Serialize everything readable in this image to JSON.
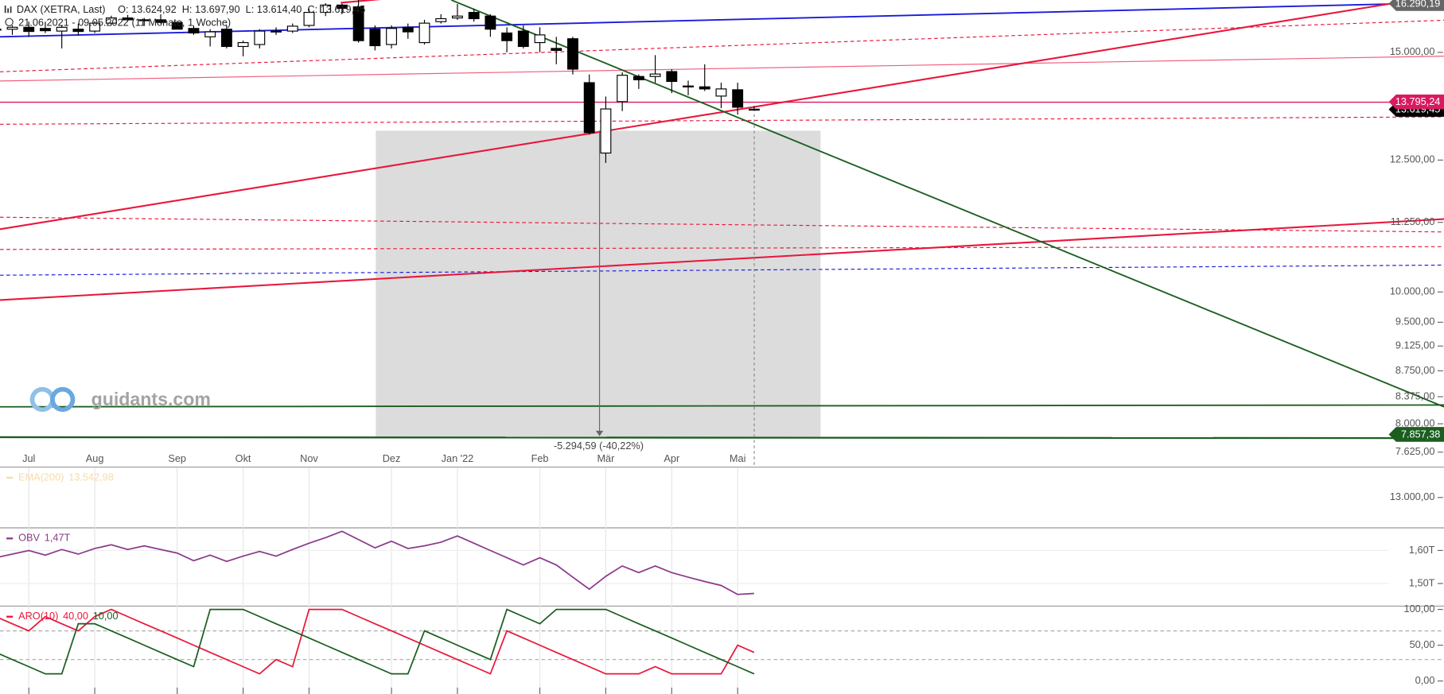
{
  "header": {
    "instrument": "DAX (XETRA, Last)",
    "ohlc": "O: 13.624,92  H: 13.697,90  L: 13.614,40  C: 13.619,45",
    "range": "21.06.2021 - 09.05.2022",
    "duration": "(11 Monate, 1 Woche)"
  },
  "watermark": "guidants.com",
  "chart_data": [
    {
      "type": "candlestick",
      "log_scale": true,
      "categories": [
        null,
        null,
        "Jul",
        null,
        null,
        null,
        "Aug",
        null,
        null,
        null,
        null,
        "Sep",
        null,
        null,
        null,
        "Okt",
        null,
        null,
        null,
        "Nov",
        null,
        null,
        null,
        null,
        "Dez",
        null,
        null,
        null,
        "Jan '22",
        null,
        null,
        null,
        null,
        "Feb",
        null,
        null,
        null,
        "Mär",
        null,
        null,
        null,
        "Apr",
        null,
        null,
        null,
        "Mai",
        null
      ],
      "open": [
        15600,
        15600,
        15650,
        15620,
        15550,
        15600,
        15550,
        15760,
        15900,
        15850,
        15850,
        15780,
        15620,
        15400,
        15600,
        15150,
        15200,
        15550,
        15550,
        15700,
        16050,
        16250,
        16200,
        15600,
        15200,
        15650,
        15250,
        15800,
        15900,
        16050,
        15950,
        15500,
        15550,
        15250,
        15100,
        15350,
        14250,
        12650,
        13800,
        14400,
        14400,
        14520,
        14150,
        14150,
        13930,
        14080,
        13624.92
      ],
      "high": [
        15700,
        15700,
        15800,
        15800,
        15700,
        15750,
        15810,
        15960,
        15980,
        15900,
        16000,
        15800,
        15700,
        15600,
        15700,
        15300,
        15600,
        15650,
        15750,
        16150,
        16300,
        16290,
        16400,
        15700,
        15700,
        15750,
        15850,
        16000,
        16280,
        16150,
        16000,
        15650,
        15700,
        15650,
        15400,
        15400,
        14450,
        13920,
        14500,
        14450,
        14930,
        14580,
        14300,
        14700,
        14250,
        14250,
        13697.9
      ],
      "low": [
        15450,
        15450,
        15400,
        15500,
        15100,
        15450,
        15500,
        15700,
        15800,
        15700,
        15750,
        15600,
        15450,
        15150,
        15100,
        14900,
        15100,
        15450,
        15500,
        15650,
        15950,
        16000,
        15250,
        15050,
        15100,
        15350,
        15200,
        15750,
        15850,
        15800,
        15400,
        15000,
        15100,
        15000,
        14700,
        14450,
        13050,
        12440,
        13580,
        14100,
        14250,
        14000,
        13950,
        14050,
        13650,
        13500,
        13614.4
      ],
      "close": [
        15600,
        15650,
        15540,
        15560,
        15650,
        15540,
        15760,
        15900,
        15850,
        15850,
        15780,
        15600,
        15500,
        15530,
        15150,
        15250,
        15550,
        15540,
        15680,
        16050,
        16250,
        16160,
        15300,
        15170,
        15620,
        15530,
        15760,
        15880,
        15950,
        15880,
        15600,
        15300,
        15150,
        15450,
        15050,
        14580,
        13095,
        13630,
        14430,
        14320,
        14460,
        14280,
        14170,
        14100,
        14100,
        13670,
        13619.45
      ],
      "up_color": "#ffffff",
      "down_color": "#000000",
      "ylim": [
        7440,
        16390
      ],
      "yticks": [
        {
          "value": 15000,
          "label": "15.000,00"
        },
        {
          "value": 12500,
          "label": "12.500,00"
        },
        {
          "value": 11250,
          "label": "11.250,00"
        },
        {
          "value": 10000,
          "label": "10.000,00"
        },
        {
          "value": 9500,
          "label": "9.500,00"
        },
        {
          "value": 9125,
          "label": "9.125,00"
        },
        {
          "value": 8750,
          "label": "8.750,00"
        },
        {
          "value": 8375,
          "label": "8.375,00"
        },
        {
          "value": 8000,
          "label": "8.000,00"
        },
        {
          "value": 7625,
          "label": "7.625,00"
        }
      ],
      "price_labels": [
        {
          "value": 16290.19,
          "label": "16.290,19",
          "color": "#666666"
        },
        {
          "value": 13619.45,
          "label": "13.619,45",
          "color": "#000000"
        },
        {
          "value": 13795.24,
          "label": "13.795,24",
          "color": "#d81b60"
        },
        {
          "value": 7857.38,
          "label": "7.857,38",
          "color": "#1b5e20"
        }
      ],
      "measure_label": "-5.294,59 (-40,22%)"
    },
    {
      "type": "line",
      "legend": "EMA(200)",
      "series": [
        {
          "color": "#f5dca8",
          "value_label": "13.542,98"
        }
      ],
      "ylim": [
        12500,
        13500
      ],
      "yticks": [
        {
          "value": 13000,
          "label": "13.000,00"
        }
      ],
      "grid": false
    },
    {
      "type": "line",
      "legend": "OBV",
      "series": [
        {
          "color": "#8b3a8b",
          "value_label": "1,47T",
          "values": [
            1.578,
            1.589,
            1.6,
            1.586,
            1.603,
            1.589,
            1.606,
            1.617,
            1.603,
            1.614,
            1.603,
            1.592,
            1.569,
            1.586,
            1.567,
            1.583,
            1.597,
            1.583,
            1.603,
            1.622,
            1.639,
            1.658,
            1.633,
            1.608,
            1.628,
            1.606,
            1.614,
            1.625,
            1.644,
            1.622,
            1.6,
            1.578,
            1.556,
            1.578,
            1.556,
            1.519,
            1.483,
            1.522,
            1.553,
            1.533,
            1.553,
            1.533,
            1.519,
            1.506,
            1.494,
            1.467,
            1.47
          ]
        }
      ],
      "ylim": [
        1.433,
        1.667
      ],
      "yticks": [
        {
          "value": 1.6,
          "label": "1,60T"
        },
        {
          "value": 1.5,
          "label": "1,50T"
        }
      ],
      "grid": true
    },
    {
      "type": "line",
      "legend": "ARO(10)",
      "series": [
        {
          "color": "#e8173c",
          "value_label": "40,00",
          "values": [
            90,
            80,
            70,
            90,
            80,
            70,
            90,
            100,
            90,
            80,
            70,
            60,
            50,
            40,
            30,
            20,
            10,
            30,
            20,
            100,
            100,
            100,
            90,
            80,
            70,
            60,
            50,
            40,
            30,
            20,
            10,
            70,
            60,
            50,
            40,
            30,
            20,
            10,
            10,
            10,
            20,
            10,
            10,
            10,
            10,
            50,
            40
          ]
        },
        {
          "color": "#1b5e20",
          "value_label": "10,00",
          "values": [
            40,
            30,
            20,
            10,
            10,
            80,
            80,
            70,
            60,
            50,
            40,
            30,
            20,
            100,
            100,
            100,
            90,
            80,
            70,
            60,
            50,
            40,
            30,
            20,
            10,
            10,
            70,
            60,
            50,
            40,
            30,
            100,
            90,
            80,
            100,
            100,
            100,
            100,
            90,
            80,
            70,
            60,
            50,
            40,
            30,
            20,
            10
          ]
        }
      ],
      "reference_lines": [
        30,
        70
      ],
      "ylim": [
        -13,
        104
      ],
      "yticks": [
        {
          "value": 100,
          "label": "100,00"
        },
        {
          "value": 50,
          "label": "50,00"
        },
        {
          "value": 0,
          "label": "0,00"
        }
      ],
      "grid": false
    }
  ]
}
